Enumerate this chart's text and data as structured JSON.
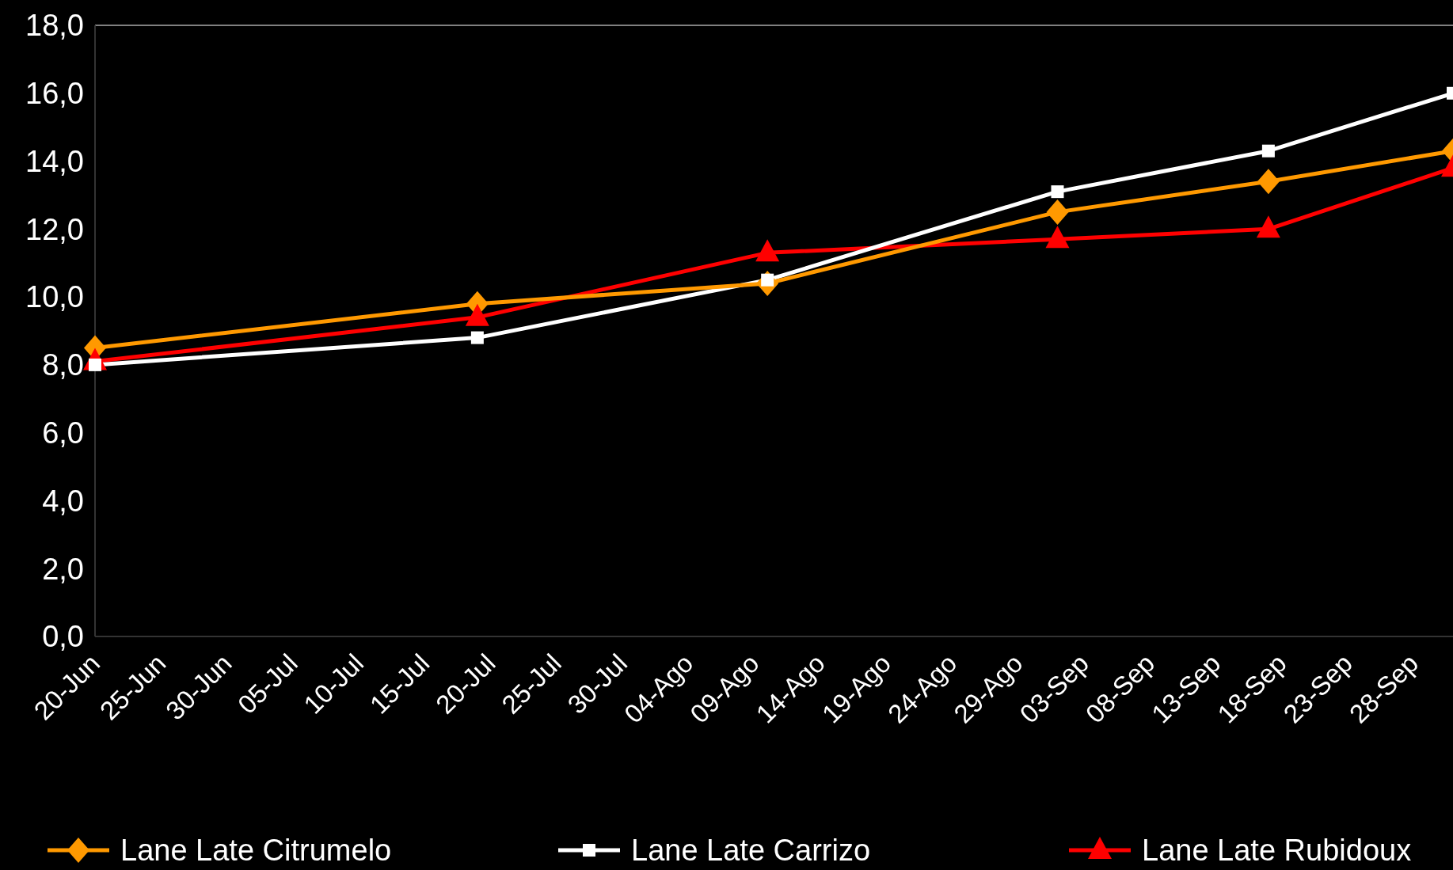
{
  "chart_data": {
    "type": "line",
    "xlim": [
      "--06-20",
      "--10-01"
    ],
    "xticks": [
      {
        "value": "--06-20",
        "label": "20-Jun"
      },
      {
        "value": "--06-25",
        "label": "25-Jun"
      },
      {
        "value": "--06-30",
        "label": "30-Jun"
      },
      {
        "value": "--07-05",
        "label": "05-Jul"
      },
      {
        "value": "--07-10",
        "label": "10-Jul"
      },
      {
        "value": "--07-15",
        "label": "15-Jul"
      },
      {
        "value": "--07-20",
        "label": "20-Jul"
      },
      {
        "value": "--07-25",
        "label": "25-Jul"
      },
      {
        "value": "--07-30",
        "label": "30-Jul"
      },
      {
        "value": "--08-04",
        "label": "04-Ago"
      },
      {
        "value": "--08-09",
        "label": "09-Ago"
      },
      {
        "value": "--08-14",
        "label": "14-Ago"
      },
      {
        "value": "--08-19",
        "label": "19-Ago"
      },
      {
        "value": "--08-24",
        "label": "24-Ago"
      },
      {
        "value": "--08-29",
        "label": "29-Ago"
      },
      {
        "value": "--09-03",
        "label": "03-Sep"
      },
      {
        "value": "--09-08",
        "label": "08-Sep"
      },
      {
        "value": "--09-13",
        "label": "13-Sep"
      },
      {
        "value": "--09-18",
        "label": "18-Sep"
      },
      {
        "value": "--09-23",
        "label": "23-Sep"
      },
      {
        "value": "--09-28",
        "label": "28-Sep"
      }
    ],
    "ylim": [
      0,
      18
    ],
    "yticks": [
      {
        "value": 0,
        "label": "0,0"
      },
      {
        "value": 2,
        "label": "2,0"
      },
      {
        "value": 4,
        "label": "4,0"
      },
      {
        "value": 6,
        "label": "6,0"
      },
      {
        "value": 8,
        "label": "8,0"
      },
      {
        "value": 10,
        "label": "10,0"
      },
      {
        "value": 12,
        "label": "12,0"
      },
      {
        "value": 14,
        "label": "14,0"
      },
      {
        "value": 16,
        "label": "16,0"
      },
      {
        "value": 18,
        "label": "18,0"
      }
    ],
    "x": [
      "--06-20",
      "--07-19",
      "--08-10",
      "--09-01",
      "--09-17",
      "--10-01"
    ],
    "legend": "bottom",
    "grid": false,
    "line_style": "solid",
    "series": [
      {
        "name": "Lane Late Citrumelo",
        "color": "#ff9900",
        "marker": "diamond",
        "values": [
          8.5,
          9.8,
          10.4,
          12.5,
          13.4,
          14.3
        ]
      },
      {
        "name": "Lane Late Carrizo",
        "color": "#ffffff",
        "marker": "square",
        "values": [
          8.0,
          8.8,
          10.5,
          13.1,
          14.3,
          16.0
        ]
      },
      {
        "name": "Lane Late Rubidoux",
        "color": "#ff0000",
        "marker": "triangle",
        "values": [
          8.1,
          9.4,
          11.3,
          11.7,
          12.0,
          13.8
        ]
      }
    ]
  }
}
